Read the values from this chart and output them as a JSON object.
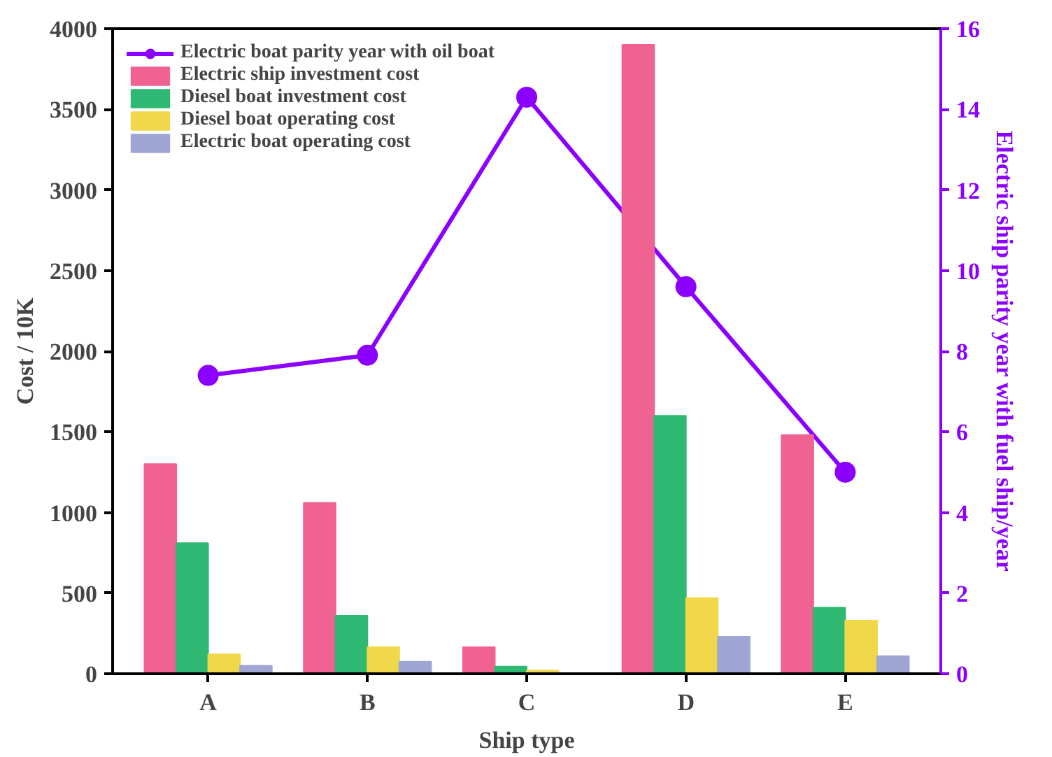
{
  "chart_data": {
    "type": "bar",
    "xlabel": "Ship type",
    "ylabel": "Cost / 10K",
    "y2label": "Electric ship parity year with fuel ship/year",
    "categories": [
      "A",
      "B",
      "C",
      "D",
      "E"
    ],
    "series": [
      {
        "name": "Electric boat parity year with oil boat",
        "type": "line",
        "axis": "y2",
        "color": "#8b00ff",
        "marker": "circle",
        "values": [
          7.4,
          7.9,
          14.3,
          9.6,
          5.0
        ]
      },
      {
        "name": "Electric ship investment cost",
        "color": "#f06292",
        "values": [
          1300,
          1060,
          165,
          3900,
          1480
        ]
      },
      {
        "name": "Diesel boat investment cost",
        "color": "#2eb872",
        "values": [
          810,
          360,
          45,
          1600,
          410
        ]
      },
      {
        "name": "Diesel boat operating cost",
        "color": "#f0d84a",
        "values": [
          120,
          165,
          20,
          470,
          330
        ]
      },
      {
        "name": "Electric boat operating cost",
        "color": "#9fa6d4",
        "values": [
          50,
          75,
          null,
          230,
          110
        ]
      }
    ],
    "ylim": [
      0,
      4000
    ],
    "yticks": [
      0,
      500,
      1000,
      1500,
      2000,
      2500,
      3000,
      3500,
      4000
    ],
    "y2lim": [
      0,
      16
    ],
    "y2ticks": [
      0,
      2,
      4,
      6,
      8,
      10,
      12,
      14,
      16
    ],
    "grid": false,
    "legend": "top left"
  }
}
